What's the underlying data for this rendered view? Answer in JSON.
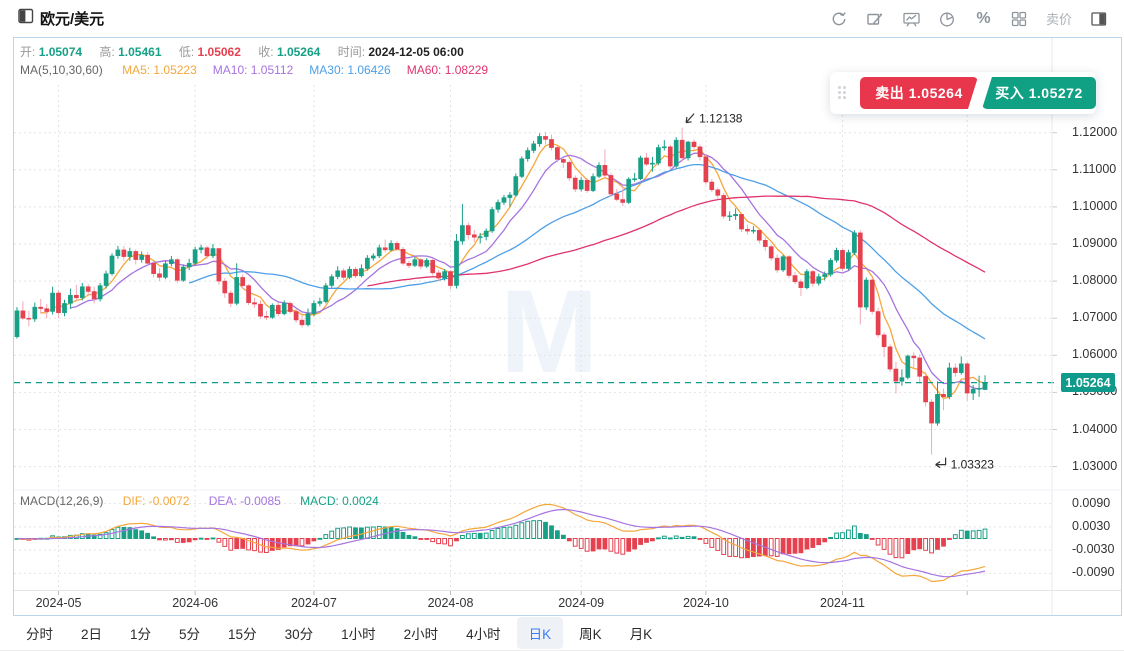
{
  "header": {
    "title": "欧元/美元",
    "sell_price_label": "卖价",
    "icons": [
      "refresh-icon",
      "draw-tool-icon",
      "chart-board-icon",
      "pie-chart-icon",
      "percent-icon",
      "grid-layout-icon",
      "sell-price-toggle",
      "panel-split-icon"
    ]
  },
  "quote": {
    "open_label": "开:",
    "open": "1.05074",
    "high_label": "高:",
    "high": "1.05461",
    "low_label": "低:",
    "low": "1.05062",
    "close_label": "收:",
    "close": "1.05264",
    "time_label": "时间:",
    "time": "2024-12-05 06:00"
  },
  "ma_bar": {
    "group": "MA(5,10,30,60)",
    "items": [
      {
        "label": "MA5: 1.05223",
        "color": "#f5a73b"
      },
      {
        "label": "MA10: 1.05112",
        "color": "#a674e0"
      },
      {
        "label": "MA30: 1.06426",
        "color": "#4d9fe8"
      },
      {
        "label": "MA60: 1.08229",
        "color": "#e0336e"
      }
    ]
  },
  "trade_panel": {
    "sell_label": "卖出",
    "sell_price": "1.05264",
    "sell_color": "#e8364d",
    "buy_label": "买入",
    "buy_price": "1.05272",
    "buy_color": "#10a184"
  },
  "macd_panel": {
    "title": "MACD(12,26,9)",
    "dif": "DIF: -0.0072",
    "dea": "DEA: -0.0085",
    "macd": "MACD: 0.0024",
    "axis_ticks": [
      "0.0090",
      "0.0030",
      "-0.0030",
      "-0.0090"
    ]
  },
  "timeframes": {
    "items": [
      "分时",
      "2日",
      "1分",
      "5分",
      "15分",
      "30分",
      "1小时",
      "2小时",
      "4小时",
      "日K",
      "周K",
      "月K"
    ],
    "active": "日K"
  },
  "chart_data": {
    "type": "candlestick",
    "symbol": "欧元/美元",
    "interval": "日K",
    "ma_periods": [
      5,
      10,
      30,
      60
    ],
    "macd_params": [
      12,
      26,
      9
    ],
    "last_price": "1.05264",
    "high_annotation": "1.12138",
    "low_annotation": "1.03323",
    "price_axis_ticks": [
      "1.12000",
      "1.11000",
      "1.10000",
      "1.09000",
      "1.08000",
      "1.07000",
      "1.06000",
      "1.05000",
      "1.04000",
      "1.03000"
    ],
    "month_labels": [
      "2024-05",
      "2024-06",
      "2024-07",
      "2024-08",
      "2024-09",
      "2024-10",
      "2024-11"
    ],
    "colors": {
      "up": "#18a087",
      "down": "#e5414f",
      "down_wick": "#f2a9b6",
      "ma5": "#f5a73b",
      "ma10": "#a674e0",
      "ma30": "#4d9fe8",
      "ma60": "#e0336e",
      "macd_dif": "#f5a73b",
      "macd_dea": "#a674e0",
      "grid": "#e3e3e3",
      "price_line": "#0f9a8c",
      "badge_bg": "#0f9a8c"
    },
    "candles": [
      [
        "04-22",
        1.065,
        1.073,
        1.0645,
        1.072
      ],
      [
        "04-23",
        1.072,
        1.0745,
        1.0695,
        1.07
      ],
      [
        "04-24",
        1.07,
        1.072,
        1.0678,
        1.0698
      ],
      [
        "04-25",
        1.0698,
        1.0742,
        1.069,
        1.073
      ],
      [
        "04-26",
        1.073,
        1.0752,
        1.0712,
        1.0726
      ],
      [
        "04-29",
        1.0726,
        1.0738,
        1.07,
        1.0718
      ],
      [
        "04-30",
        1.0718,
        1.0785,
        1.071,
        1.0768
      ],
      [
        "05-01",
        1.0768,
        1.0775,
        1.07,
        1.0715
      ],
      [
        "05-02",
        1.0715,
        1.075,
        1.0705,
        1.074
      ],
      [
        "05-03",
        1.074,
        1.078,
        1.0725,
        1.0762
      ],
      [
        "05-06",
        1.0762,
        1.079,
        1.0745,
        1.0755
      ],
      [
        "05-07",
        1.0755,
        1.0795,
        1.0748,
        1.0785
      ],
      [
        "05-08",
        1.0785,
        1.0792,
        1.076,
        1.0772
      ],
      [
        "05-09",
        1.0772,
        1.0785,
        1.074,
        1.0752
      ],
      [
        "05-10",
        1.0752,
        1.0795,
        1.0745,
        1.0788
      ],
      [
        "05-13",
        1.0788,
        1.0828,
        1.078,
        1.082
      ],
      [
        "05-14",
        1.082,
        1.0875,
        1.0815,
        1.0868
      ],
      [
        "05-15",
        1.0868,
        1.0895,
        1.086,
        1.0884
      ],
      [
        "05-16",
        1.0884,
        1.0895,
        1.0855,
        1.0866
      ],
      [
        "05-17",
        1.0866,
        1.089,
        1.0855,
        1.088
      ],
      [
        "05-20",
        1.088,
        1.0886,
        1.0845,
        1.0858
      ],
      [
        "05-21",
        1.0858,
        1.088,
        1.085,
        1.087
      ],
      [
        "05-22",
        1.087,
        1.0878,
        1.084,
        1.0848
      ],
      [
        "05-23",
        1.0848,
        1.0855,
        1.081,
        1.082
      ],
      [
        "05-24",
        1.082,
        1.0835,
        1.08,
        1.081
      ],
      [
        "05-27",
        1.081,
        1.0855,
        1.0805,
        1.0847
      ],
      [
        "05-28",
        1.0847,
        1.0868,
        1.084,
        1.0858
      ],
      [
        "05-29",
        1.0858,
        1.0862,
        1.0795,
        1.0802
      ],
      [
        "05-30",
        1.0802,
        1.0845,
        1.0798,
        1.0838
      ],
      [
        "05-31",
        1.0838,
        1.086,
        1.083,
        1.0848
      ],
      [
        "06-03",
        1.0848,
        1.0892,
        1.0842,
        1.0885
      ],
      [
        "06-04",
        1.0885,
        1.0898,
        1.0875,
        1.089
      ],
      [
        "06-05",
        1.089,
        1.0895,
        1.086,
        1.0868
      ],
      [
        "06-06",
        1.0868,
        1.09,
        1.0862,
        1.0888
      ],
      [
        "06-07",
        1.0888,
        1.089,
        1.079,
        1.08
      ],
      [
        "06-10",
        1.08,
        1.0808,
        1.0755,
        1.0768
      ],
      [
        "06-11",
        1.0768,
        1.0775,
        1.073,
        1.074
      ],
      [
        "06-12",
        1.074,
        1.0848,
        1.0735,
        1.081
      ],
      [
        "06-13",
        1.081,
        1.0818,
        1.078,
        1.0788
      ],
      [
        "06-14",
        1.0788,
        1.0792,
        1.0735,
        1.0742
      ],
      [
        "06-17",
        1.0742,
        1.0755,
        1.0728,
        1.0738
      ],
      [
        "06-18",
        1.0738,
        1.0748,
        1.0698,
        1.0705
      ],
      [
        "06-19",
        1.0705,
        1.072,
        1.0695,
        1.0702
      ],
      [
        "06-20",
        1.0702,
        1.074,
        1.0698,
        1.0735
      ],
      [
        "06-21",
        1.0735,
        1.0742,
        1.0705,
        1.0712
      ],
      [
        "06-24",
        1.0712,
        1.0748,
        1.0708,
        1.074
      ],
      [
        "06-25",
        1.074,
        1.0745,
        1.0712,
        1.0718
      ],
      [
        "06-26",
        1.0718,
        1.0725,
        1.0688,
        1.0695
      ],
      [
        "06-27",
        1.0695,
        1.0708,
        1.0675,
        1.0682
      ],
      [
        "06-28",
        1.0682,
        1.0726,
        1.0678,
        1.0712
      ],
      [
        "07-01",
        1.0712,
        1.0748,
        1.0705,
        1.074
      ],
      [
        "07-02",
        1.074,
        1.0755,
        1.0732,
        1.0745
      ],
      [
        "07-03",
        1.0745,
        1.0795,
        1.074,
        1.0788
      ],
      [
        "07-04",
        1.0788,
        1.0818,
        1.0782,
        1.0812
      ],
      [
        "07-05",
        1.0812,
        1.084,
        1.0805,
        1.0828
      ],
      [
        "07-08",
        1.0828,
        1.0835,
        1.0802,
        1.081
      ],
      [
        "07-09",
        1.081,
        1.084,
        1.0805,
        1.0832
      ],
      [
        "07-10",
        1.0832,
        1.0838,
        1.0808,
        1.0814
      ],
      [
        "07-11",
        1.0814,
        1.0845,
        1.081,
        1.0834
      ],
      [
        "07-12",
        1.0834,
        1.087,
        1.0828,
        1.0862
      ],
      [
        "07-15",
        1.0862,
        1.0875,
        1.0855,
        1.0868
      ],
      [
        "07-16",
        1.0868,
        1.0898,
        1.0862,
        1.089
      ],
      [
        "07-17",
        1.089,
        1.0912,
        1.0878,
        1.0884
      ],
      [
        "07-18",
        1.0884,
        1.091,
        1.088,
        1.0902
      ],
      [
        "07-19",
        1.0902,
        1.0908,
        1.0882,
        1.0886
      ],
      [
        "07-22",
        1.0886,
        1.0892,
        1.0842,
        1.0848
      ],
      [
        "07-23",
        1.0848,
        1.0855,
        1.0835,
        1.0842
      ],
      [
        "07-24",
        1.0842,
        1.0865,
        1.0838,
        1.0858
      ],
      [
        "07-25",
        1.0858,
        1.0862,
        1.0832,
        1.084
      ],
      [
        "07-26",
        1.084,
        1.0862,
        1.0835,
        1.0856
      ],
      [
        "07-29",
        1.0856,
        1.086,
        1.0815,
        1.0822
      ],
      [
        "07-30",
        1.0822,
        1.083,
        1.08,
        1.0808
      ],
      [
        "07-31",
        1.0808,
        1.0832,
        1.0802,
        1.0826
      ],
      [
        "08-01",
        1.0826,
        1.083,
        1.0778,
        1.0788
      ],
      [
        "08-02",
        1.0788,
        1.0927,
        1.078,
        1.0908
      ],
      [
        "08-05",
        1.0908,
        1.1008,
        1.0898,
        1.095
      ],
      [
        "08-06",
        1.095,
        1.0958,
        1.0912,
        1.0925
      ],
      [
        "08-07",
        1.0925,
        1.0938,
        1.0905,
        1.0918
      ],
      [
        "08-08",
        1.0918,
        1.093,
        1.0902,
        1.092
      ],
      [
        "08-09",
        1.092,
        1.0942,
        1.091,
        1.0935
      ],
      [
        "08-12",
        1.0935,
        1.1,
        1.093,
        1.0993
      ],
      [
        "08-13",
        1.0993,
        1.102,
        1.0985,
        1.1012
      ],
      [
        "08-14",
        1.1012,
        1.1032,
        1.1005,
        1.1025
      ],
      [
        "08-15",
        1.1025,
        1.104,
        1.1,
        1.1032
      ],
      [
        "08-16",
        1.1032,
        1.109,
        1.1028,
        1.1082
      ],
      [
        "08-19",
        1.1082,
        1.1136,
        1.1078,
        1.113
      ],
      [
        "08-20",
        1.113,
        1.116,
        1.1122,
        1.1152
      ],
      [
        "08-21",
        1.1152,
        1.1178,
        1.1145,
        1.117
      ],
      [
        "08-22",
        1.117,
        1.1198,
        1.1162,
        1.119
      ],
      [
        "08-23",
        1.119,
        1.1202,
        1.1168,
        1.1182
      ],
      [
        "08-26",
        1.1182,
        1.1195,
        1.1152,
        1.116
      ],
      [
        "08-27",
        1.116,
        1.1168,
        1.112,
        1.1128
      ],
      [
        "08-28",
        1.1128,
        1.1132,
        1.1105,
        1.112
      ],
      [
        "08-29",
        1.112,
        1.1125,
        1.107,
        1.1078
      ],
      [
        "08-30",
        1.1078,
        1.1085,
        1.104,
        1.1048
      ],
      [
        "09-02",
        1.1048,
        1.108,
        1.1042,
        1.1072
      ],
      [
        "09-03",
        1.1072,
        1.1078,
        1.1038,
        1.1044
      ],
      [
        "09-04",
        1.1044,
        1.109,
        1.104,
        1.1082
      ],
      [
        "09-05",
        1.1082,
        1.112,
        1.1078,
        1.1112
      ],
      [
        "09-06",
        1.1112,
        1.1155,
        1.1078,
        1.1085
      ],
      [
        "09-09",
        1.1085,
        1.1092,
        1.1028,
        1.1035
      ],
      [
        "09-10",
        1.1035,
        1.1048,
        1.1015,
        1.102
      ],
      [
        "09-11",
        1.102,
        1.1055,
        1.1002,
        1.1012
      ],
      [
        "09-12",
        1.1012,
        1.108,
        1.1008,
        1.1075
      ],
      [
        "09-13",
        1.1075,
        1.1092,
        1.1068,
        1.1076
      ],
      [
        "09-16",
        1.1076,
        1.1138,
        1.1072,
        1.1132
      ],
      [
        "09-17",
        1.1132,
        1.1145,
        1.111,
        1.1115
      ],
      [
        "09-18",
        1.1115,
        1.1135,
        1.1095,
        1.1118
      ],
      [
        "09-19",
        1.1118,
        1.1168,
        1.1112,
        1.116
      ],
      [
        "09-20",
        1.116,
        1.118,
        1.1152,
        1.1162
      ],
      [
        "09-23",
        1.1162,
        1.1168,
        1.1102,
        1.111
      ],
      [
        "09-24",
        1.111,
        1.1188,
        1.1105,
        1.118
      ],
      [
        "09-25",
        1.118,
        1.12138,
        1.1122,
        1.1132
      ],
      [
        "09-26",
        1.1132,
        1.1178,
        1.1125,
        1.1175
      ],
      [
        "09-27",
        1.1175,
        1.1182,
        1.1155,
        1.1162
      ],
      [
        "09-30",
        1.1162,
        1.1168,
        1.1125,
        1.1135
      ],
      [
        "10-01",
        1.1135,
        1.1142,
        1.106,
        1.1067
      ],
      [
        "10-02",
        1.1067,
        1.1075,
        1.104,
        1.1046
      ],
      [
        "10-03",
        1.1046,
        1.1052,
        1.1022,
        1.1031
      ],
      [
        "10-04",
        1.1031,
        1.1038,
        1.0968,
        1.0975
      ],
      [
        "10-07",
        1.0975,
        1.0988,
        1.0962,
        1.0976
      ],
      [
        "10-08",
        1.0976,
        1.0996,
        1.0965,
        1.098
      ],
      [
        "10-09",
        1.098,
        1.0985,
        1.0932,
        1.094
      ],
      [
        "10-10",
        1.094,
        1.0952,
        1.0925,
        1.0935
      ],
      [
        "10-11",
        1.0935,
        1.0948,
        1.0928,
        1.0937
      ],
      [
        "10-14",
        1.0937,
        1.0942,
        1.0902,
        1.091
      ],
      [
        "10-15",
        1.091,
        1.0918,
        1.0882,
        1.0893
      ],
      [
        "10-16",
        1.0893,
        1.0898,
        1.0855,
        1.0862
      ],
      [
        "10-17",
        1.0862,
        1.0872,
        1.0822,
        1.083
      ],
      [
        "10-18",
        1.083,
        1.087,
        1.0825,
        1.0866
      ],
      [
        "10-21",
        1.0866,
        1.087,
        1.0808,
        1.0815
      ],
      [
        "10-22",
        1.0815,
        1.0825,
        1.0792,
        1.0798
      ],
      [
        "10-23",
        1.0798,
        1.0805,
        1.076,
        1.0782
      ],
      [
        "10-24",
        1.0782,
        1.0832,
        1.0778,
        1.0826
      ],
      [
        "10-25",
        1.0826,
        1.083,
        1.0785,
        1.0794
      ],
      [
        "10-28",
        1.0794,
        1.082,
        1.0788,
        1.0812
      ],
      [
        "10-29",
        1.0812,
        1.0826,
        1.0802,
        1.0818
      ],
      [
        "10-30",
        1.0818,
        1.0862,
        1.0812,
        1.0856
      ],
      [
        "10-31",
        1.0856,
        1.089,
        1.085,
        1.0883
      ],
      [
        "11-01",
        1.0883,
        1.0888,
        1.0828,
        1.0834
      ],
      [
        "11-04",
        1.0834,
        1.0885,
        1.083,
        1.0877
      ],
      [
        "11-05",
        1.0877,
        1.0937,
        1.087,
        1.093
      ],
      [
        "11-06",
        1.093,
        1.0937,
        1.0683,
        1.073
      ],
      [
        "11-07",
        1.073,
        1.081,
        1.0722,
        1.0803
      ],
      [
        "11-08",
        1.0803,
        1.0808,
        1.071,
        1.0718
      ],
      [
        "11-11",
        1.0718,
        1.0728,
        1.0648,
        1.0655
      ],
      [
        "11-12",
        1.0655,
        1.0662,
        1.0595,
        1.0623
      ],
      [
        "11-13",
        1.0623,
        1.063,
        1.0555,
        1.0563
      ],
      [
        "11-14",
        1.0563,
        1.0582,
        1.0497,
        1.053
      ],
      [
        "11-15",
        1.053,
        1.0562,
        1.0518,
        1.054
      ],
      [
        "11-18",
        1.054,
        1.0602,
        1.0535,
        1.0598
      ],
      [
        "11-19",
        1.0598,
        1.0608,
        1.0565,
        1.0593
      ],
      [
        "11-20",
        1.0593,
        1.0602,
        1.0524,
        1.0543
      ],
      [
        "11-21",
        1.0543,
        1.0555,
        1.0462,
        1.0474
      ],
      [
        "11-22",
        1.0474,
        1.0482,
        1.03323,
        1.0417
      ],
      [
        "11-25",
        1.0417,
        1.053,
        1.041,
        1.0495
      ],
      [
        "11-26",
        1.0495,
        1.051,
        1.0452,
        1.0488
      ],
      [
        "11-27",
        1.0488,
        1.058,
        1.0482,
        1.0566
      ],
      [
        "11-28",
        1.0566,
        1.0578,
        1.0542,
        1.0553
      ],
      [
        "11-29",
        1.0553,
        1.0597,
        1.0548,
        1.0577
      ],
      [
        "12-02",
        1.0577,
        1.0582,
        1.0478,
        1.0498
      ],
      [
        "12-03",
        1.0498,
        1.052,
        1.048,
        1.0509
      ],
      [
        "12-04",
        1.0509,
        1.0545,
        1.0488,
        1.0511
      ],
      [
        "12-05",
        1.05074,
        1.05461,
        1.05062,
        1.05264
      ]
    ]
  }
}
